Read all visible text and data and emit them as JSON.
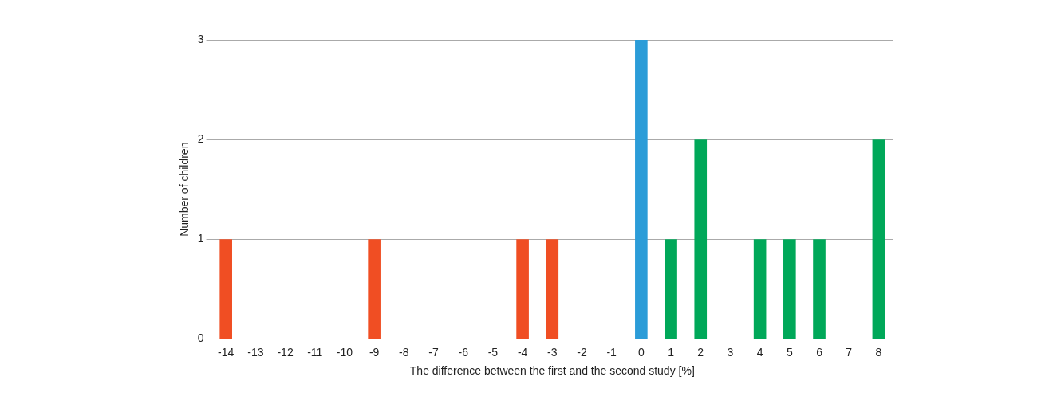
{
  "chart_data": {
    "type": "bar",
    "xlabel": "The difference between the first and the second study [%]",
    "ylabel": "Number of children",
    "categories": [
      "-14",
      "-13",
      "-12",
      "-11",
      "-10",
      "-9",
      "-8",
      "-7",
      "-6",
      "-5",
      "-4",
      "-3",
      "-2",
      "-1",
      "0",
      "1",
      "2",
      "3",
      "4",
      "5",
      "6",
      "7",
      "8"
    ],
    "values": [
      1,
      0,
      0,
      0,
      0,
      1,
      0,
      0,
      0,
      0,
      1,
      1,
      0,
      0,
      3,
      1,
      2,
      0,
      1,
      1,
      1,
      0,
      2
    ],
    "colors": [
      "#f04e23",
      "#f04e23",
      "#f04e23",
      "#f04e23",
      "#f04e23",
      "#f04e23",
      "#f04e23",
      "#f04e23",
      "#f04e23",
      "#f04e23",
      "#f04e23",
      "#f04e23",
      "#f04e23",
      "#f04e23",
      "#2b9cd8",
      "#00a859",
      "#00a859",
      "#00a859",
      "#00a859",
      "#00a859",
      "#00a859",
      "#00a859",
      "#00a859"
    ],
    "ylim": [
      0,
      3
    ],
    "yticks": [
      0,
      1,
      2,
      3
    ],
    "grid": "y",
    "legend": false
  }
}
